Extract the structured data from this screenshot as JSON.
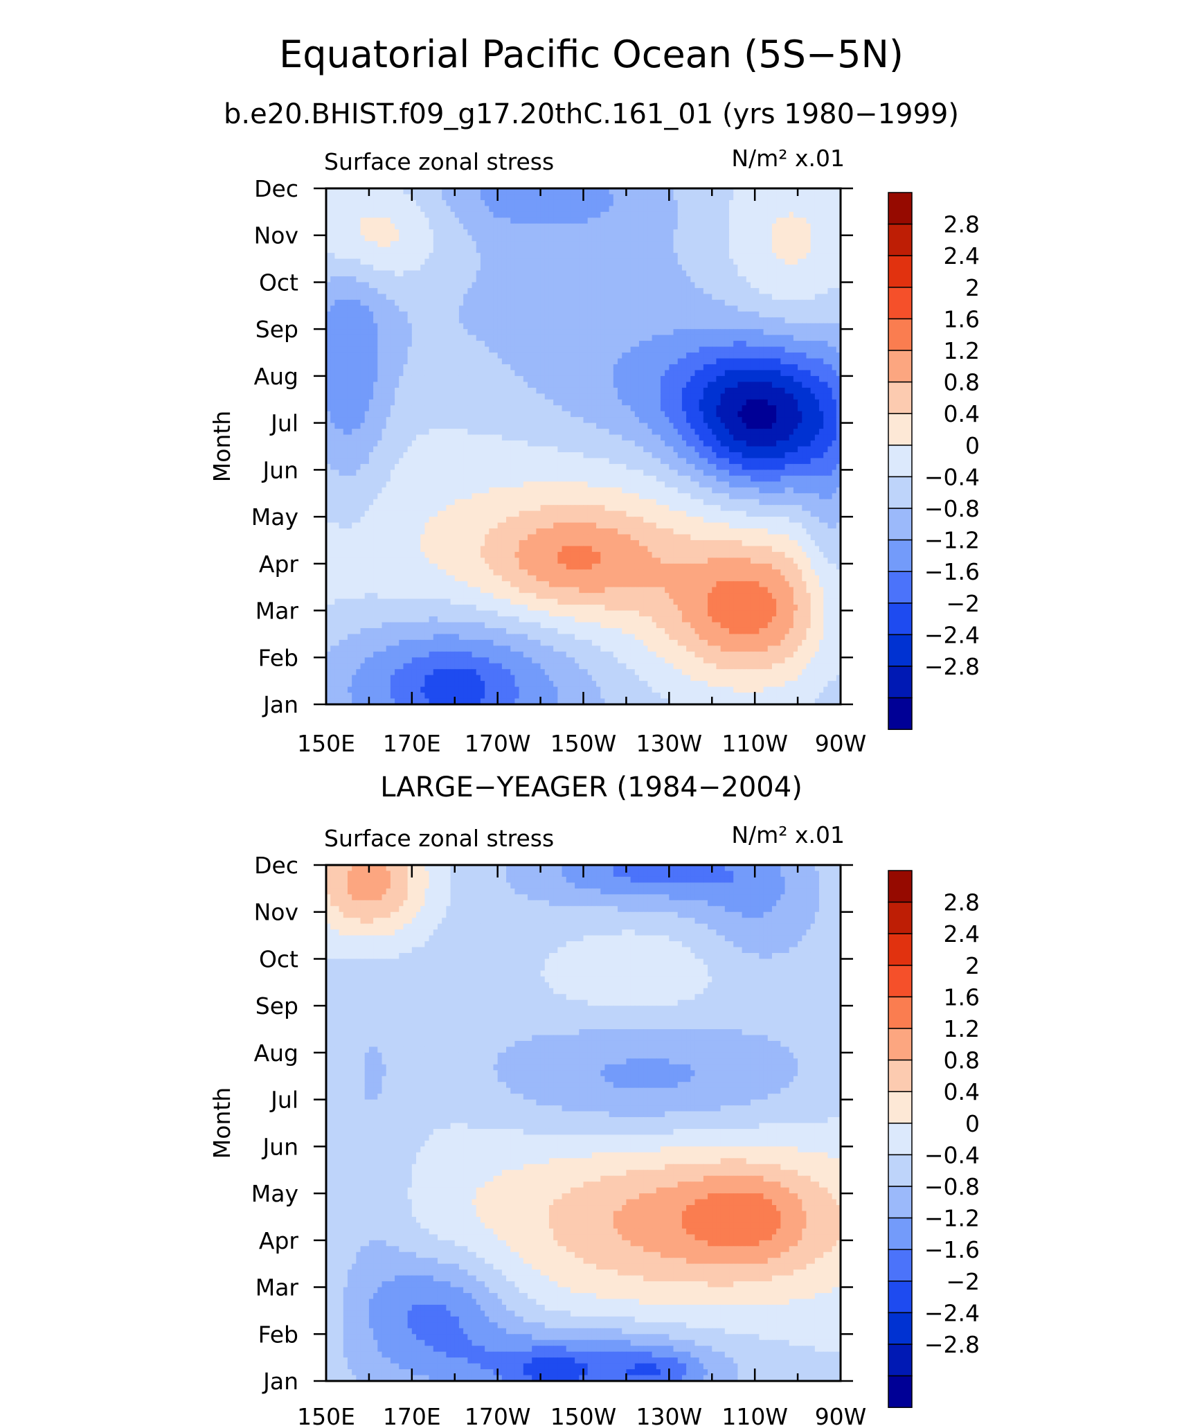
{
  "colors": {
    "palette": [
      "#000096",
      "#0019b4",
      "#0032d2",
      "#1e4bf0",
      "#4b73fa",
      "#739bfa",
      "#9bb9fa",
      "#bed4fa",
      "#dce9fc",
      "#fde8d6",
      "#fccbb0",
      "#fca680",
      "#fa7d50",
      "#f5502a",
      "#e1320f",
      "#be1e05",
      "#960a00"
    ],
    "axis": "#000000"
  },
  "header": {
    "title": "Equatorial Pacific Ocean (5S−5N)",
    "subtitle": "b.e20.BHIST.f09_g17.20thC.161_01 (yrs 1980−1999)"
  },
  "chart_data": [
    {
      "type": "heatmap",
      "name": "model",
      "panel_title": "",
      "left_label": "Surface zonal stress",
      "units_label": "N/m² x.01",
      "ylabel": "Month",
      "xlabel": "",
      "x_ticks": [
        "150E",
        "170E",
        "170W",
        "150W",
        "130W",
        "110W",
        "90W"
      ],
      "x_lon": [
        150,
        170,
        190,
        210,
        230,
        250,
        270
      ],
      "xlim": [
        150,
        270
      ],
      "y_ticks": [
        "Jan",
        "Feb",
        "Mar",
        "Apr",
        "May",
        "Jun",
        "Jul",
        "Aug",
        "Sep",
        "Oct",
        "Nov",
        "Dec"
      ],
      "ylim": [
        1,
        12
      ],
      "levels": [
        -2.8,
        -2.4,
        -2,
        -1.6,
        -1.2,
        -0.8,
        -0.4,
        0,
        0.4,
        0.8,
        1.2,
        1.6,
        2,
        2.4,
        2.8
      ],
      "level_labels": [
        "−2.8",
        "−2.4",
        "−2",
        "−1.6",
        "−1.2",
        "−0.8",
        "−0.4",
        "0",
        "0.4",
        "0.8",
        "1.2",
        "1.6",
        "2",
        "2.4",
        "2.8"
      ],
      "base_shape": {
        "amp": 0.5,
        "center_lon": 210,
        "phase_month": 4.0
      },
      "features": [
        {
          "lon": 180,
          "month": 1.5,
          "amp": -1.6,
          "slon": 22,
          "smon": 1.1
        },
        {
          "lon": 180,
          "month": 1.4,
          "amp": -0.4,
          "slon": 6,
          "smon": 0.4
        },
        {
          "lon": 155,
          "month": 8.0,
          "amp": -1.0,
          "slon": 7,
          "smon": 2.0
        },
        {
          "lon": 208,
          "month": 4.1,
          "amp": 1.2,
          "slon": 15,
          "smon": 0.8
        },
        {
          "lon": 248,
          "month": 3.0,
          "amp": 1.5,
          "slon": 13,
          "smon": 1.0
        },
        {
          "lon": 252,
          "month": 7.0,
          "amp": -2.5,
          "slon": 13,
          "smon": 1.1
        },
        {
          "lon": 232,
          "month": 7.6,
          "amp": -0.7,
          "slon": 22,
          "smon": 1.0
        },
        {
          "lon": 200,
          "month": 11.9,
          "amp": -0.8,
          "slon": 18,
          "smon": 0.6
        },
        {
          "lon": 160,
          "month": 11.0,
          "amp": 1.0,
          "slon": 12,
          "smon": 0.8
        },
        {
          "lon": 258,
          "month": 10.7,
          "amp": 0.8,
          "slon": 12,
          "smon": 1.2
        },
        {
          "lon": 268,
          "month": 5.0,
          "amp": -0.6,
          "slon": 5,
          "smon": 2.5
        }
      ]
    },
    {
      "type": "heatmap",
      "name": "observations",
      "panel_title": "LARGE−YEAGER (1984−2004)",
      "left_label": "Surface zonal stress",
      "units_label": "N/m² x.01",
      "ylabel": "Month",
      "xlabel": "",
      "x_ticks": [
        "150E",
        "170E",
        "170W",
        "150W",
        "130W",
        "110W",
        "90W"
      ],
      "x_lon": [
        150,
        170,
        190,
        210,
        230,
        250,
        270
      ],
      "xlim": [
        150,
        270
      ],
      "y_ticks": [
        "Jan",
        "Feb",
        "Mar",
        "Apr",
        "May",
        "Jun",
        "Jul",
        "Aug",
        "Sep",
        "Oct",
        "Nov",
        "Dec"
      ],
      "ylim": [
        1,
        12
      ],
      "levels": [
        -2.8,
        -2.4,
        -2,
        -1.6,
        -1.2,
        -0.8,
        -0.4,
        0,
        0.4,
        0.8,
        1.2,
        1.6,
        2,
        2.4,
        2.8
      ],
      "level_labels": [
        "−2.8",
        "−2.4",
        "−2",
        "−1.6",
        "−1.2",
        "−0.8",
        "−0.4",
        "0",
        "0.4",
        "0.8",
        "1.2",
        "1.6",
        "2",
        "2.4",
        "2.8"
      ],
      "base_shape": {
        "amp": 0.3,
        "center_lon": 210,
        "phase_month": 4.5
      },
      "features": [
        {
          "lon": 176,
          "month": 2.5,
          "amp": -1.3,
          "slon": 12,
          "smon": 0.9
        },
        {
          "lon": 210,
          "month": 1.3,
          "amp": -1.4,
          "slon": 22,
          "smon": 0.6
        },
        {
          "lon": 202,
          "month": 1.2,
          "amp": -0.5,
          "slon": 6,
          "smon": 0.3
        },
        {
          "lon": 228,
          "month": 1.2,
          "amp": -0.6,
          "slon": 7,
          "smon": 0.3
        },
        {
          "lon": 160,
          "month": 5.0,
          "amp": -0.5,
          "slon": 8,
          "smon": 3.0
        },
        {
          "lon": 238,
          "month": 4.4,
          "amp": 1.2,
          "slon": 28,
          "smon": 1.1
        },
        {
          "lon": 248,
          "month": 4.5,
          "amp": 0.6,
          "slon": 9,
          "smon": 0.7
        },
        {
          "lon": 225,
          "month": 7.4,
          "amp": -0.9,
          "slon": 28,
          "smon": 0.9
        },
        {
          "lon": 222,
          "month": 9.7,
          "amp": 0.6,
          "slon": 18,
          "smon": 0.8
        },
        {
          "lon": 160,
          "month": 11.6,
          "amp": 1.6,
          "slon": 10,
          "smon": 0.9
        },
        {
          "lon": 225,
          "month": 11.9,
          "amp": -1.1,
          "slon": 18,
          "smon": 0.5
        },
        {
          "lon": 250,
          "month": 11.2,
          "amp": -0.6,
          "slon": 10,
          "smon": 1.0
        }
      ]
    }
  ]
}
